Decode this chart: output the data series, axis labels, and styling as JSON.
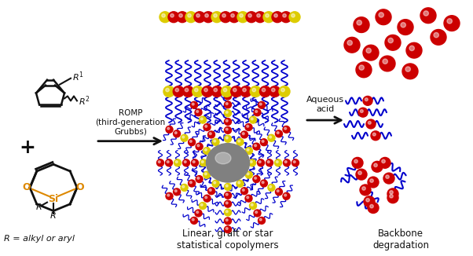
{
  "bg_color": "#ffffff",
  "red_color": "#cc0000",
  "yellow_color": "#ddcc00",
  "blue_color": "#0000cc",
  "orange_color": "#dd8800",
  "black_color": "#111111",
  "gray_color": "#888888",
  "label_left_bottom": "R = alkyl or aryl",
  "label_center_bottom": "Linear, graft or star\nstatistical copolymers",
  "label_right_bottom": "Backbone\ndegradation",
  "label_arrow1": "ROMP\n(third-generation\nGrubbs)",
  "label_arrow2": "Aqueous\nacid"
}
